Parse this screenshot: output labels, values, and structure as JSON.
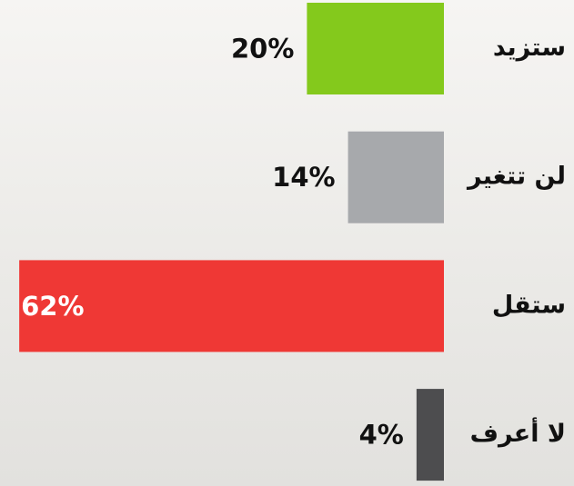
{
  "chart_data": {
    "type": "hbar",
    "categories": [
      "ستزيد",
      "لن تتغير",
      "ستقل",
      "لا أعرف"
    ],
    "values": [
      20,
      14,
      62,
      4
    ],
    "value_labels": [
      "20%",
      "14%",
      "62%",
      "4%"
    ],
    "colors": [
      "#84c91c",
      "#a7a9ac",
      "#ef3835",
      "#4d4d4f"
    ]
  }
}
